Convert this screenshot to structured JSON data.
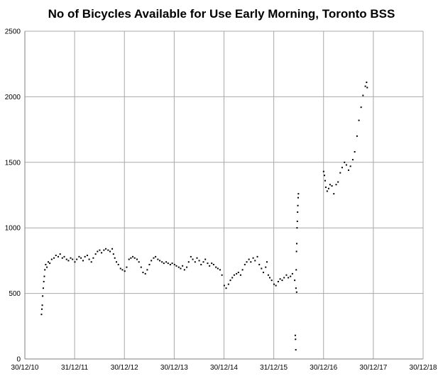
{
  "chart_data": {
    "type": "scatter",
    "title": "No of Bicycles Available for Use Early Morning, Toronto BSS",
    "xlabel": "",
    "ylabel": "",
    "x_ticks": [
      "30/12/10",
      "31/12/11",
      "30/12/12",
      "30/12/13",
      "30/12/14",
      "31/12/15",
      "30/12/16",
      "30/12/17",
      "30/12/18"
    ],
    "xlim": [
      "2010-12-30",
      "2018-12-30"
    ],
    "ylim": [
      0,
      2500
    ],
    "y_ticks": [
      0,
      500,
      1000,
      1500,
      2000,
      2500
    ],
    "grid": true,
    "marker_color": "#000000",
    "points": [
      {
        "x": "2011-05-01",
        "y": 340
      },
      {
        "x": "2011-05-04",
        "y": 380
      },
      {
        "x": "2011-05-07",
        "y": 410
      },
      {
        "x": "2011-05-10",
        "y": 480
      },
      {
        "x": "2011-05-14",
        "y": 540
      },
      {
        "x": "2011-05-18",
        "y": 590
      },
      {
        "x": "2011-05-22",
        "y": 630
      },
      {
        "x": "2011-05-26",
        "y": 680
      },
      {
        "x": "2011-06-01",
        "y": 720
      },
      {
        "x": "2011-06-10",
        "y": 700
      },
      {
        "x": "2011-06-20",
        "y": 740
      },
      {
        "x": "2011-07-01",
        "y": 730
      },
      {
        "x": "2011-07-15",
        "y": 760
      },
      {
        "x": "2011-08-01",
        "y": 770
      },
      {
        "x": "2011-08-15",
        "y": 790
      },
      {
        "x": "2011-09-01",
        "y": 780
      },
      {
        "x": "2011-09-15",
        "y": 800
      },
      {
        "x": "2011-10-01",
        "y": 770
      },
      {
        "x": "2011-10-15",
        "y": 780
      },
      {
        "x": "2011-11-01",
        "y": 760
      },
      {
        "x": "2011-11-15",
        "y": 750
      },
      {
        "x": "2011-12-01",
        "y": 770
      },
      {
        "x": "2011-12-15",
        "y": 760
      },
      {
        "x": "2012-01-01",
        "y": 740
      },
      {
        "x": "2012-01-15",
        "y": 760
      },
      {
        "x": "2012-02-01",
        "y": 780
      },
      {
        "x": "2012-02-15",
        "y": 770
      },
      {
        "x": "2012-03-01",
        "y": 750
      },
      {
        "x": "2012-03-15",
        "y": 780
      },
      {
        "x": "2012-04-01",
        "y": 790
      },
      {
        "x": "2012-04-15",
        "y": 760
      },
      {
        "x": "2012-05-01",
        "y": 740
      },
      {
        "x": "2012-05-15",
        "y": 770
      },
      {
        "x": "2012-06-01",
        "y": 800
      },
      {
        "x": "2012-06-15",
        "y": 820
      },
      {
        "x": "2012-07-01",
        "y": 830
      },
      {
        "x": "2012-07-15",
        "y": 810
      },
      {
        "x": "2012-08-01",
        "y": 830
      },
      {
        "x": "2012-08-15",
        "y": 840
      },
      {
        "x": "2012-09-01",
        "y": 830
      },
      {
        "x": "2012-09-15",
        "y": 820
      },
      {
        "x": "2012-10-01",
        "y": 840
      },
      {
        "x": "2012-10-10",
        "y": 800
      },
      {
        "x": "2012-10-20",
        "y": 770
      },
      {
        "x": "2012-11-01",
        "y": 740
      },
      {
        "x": "2012-11-15",
        "y": 720
      },
      {
        "x": "2012-12-01",
        "y": 690
      },
      {
        "x": "2012-12-15",
        "y": 680
      },
      {
        "x": "2013-01-01",
        "y": 670
      },
      {
        "x": "2013-01-15",
        "y": 700
      },
      {
        "x": "2013-02-01",
        "y": 760
      },
      {
        "x": "2013-02-15",
        "y": 770
      },
      {
        "x": "2013-03-01",
        "y": 780
      },
      {
        "x": "2013-03-15",
        "y": 770
      },
      {
        "x": "2013-04-01",
        "y": 760
      },
      {
        "x": "2013-04-15",
        "y": 740
      },
      {
        "x": "2013-05-01",
        "y": 700
      },
      {
        "x": "2013-05-15",
        "y": 660
      },
      {
        "x": "2013-06-01",
        "y": 650
      },
      {
        "x": "2013-06-15",
        "y": 680
      },
      {
        "x": "2013-07-01",
        "y": 720
      },
      {
        "x": "2013-07-15",
        "y": 750
      },
      {
        "x": "2013-08-01",
        "y": 770
      },
      {
        "x": "2013-08-15",
        "y": 780
      },
      {
        "x": "2013-09-01",
        "y": 760
      },
      {
        "x": "2013-09-15",
        "y": 750
      },
      {
        "x": "2013-10-01",
        "y": 740
      },
      {
        "x": "2013-10-15",
        "y": 730
      },
      {
        "x": "2013-11-01",
        "y": 740
      },
      {
        "x": "2013-11-15",
        "y": 730
      },
      {
        "x": "2013-12-01",
        "y": 720
      },
      {
        "x": "2013-12-15",
        "y": 730
      },
      {
        "x": "2014-01-01",
        "y": 720
      },
      {
        "x": "2014-01-15",
        "y": 710
      },
      {
        "x": "2014-02-01",
        "y": 700
      },
      {
        "x": "2014-02-15",
        "y": 690
      },
      {
        "x": "2014-03-01",
        "y": 710
      },
      {
        "x": "2014-03-15",
        "y": 680
      },
      {
        "x": "2014-04-01",
        "y": 700
      },
      {
        "x": "2014-04-15",
        "y": 740
      },
      {
        "x": "2014-05-01",
        "y": 780
      },
      {
        "x": "2014-05-15",
        "y": 760
      },
      {
        "x": "2014-06-01",
        "y": 740
      },
      {
        "x": "2014-06-15",
        "y": 770
      },
      {
        "x": "2014-07-01",
        "y": 750
      },
      {
        "x": "2014-07-15",
        "y": 720
      },
      {
        "x": "2014-08-01",
        "y": 740
      },
      {
        "x": "2014-08-15",
        "y": 760
      },
      {
        "x": "2014-09-01",
        "y": 730
      },
      {
        "x": "2014-09-15",
        "y": 710
      },
      {
        "x": "2014-10-01",
        "y": 730
      },
      {
        "x": "2014-10-15",
        "y": 720
      },
      {
        "x": "2014-11-01",
        "y": 700
      },
      {
        "x": "2014-11-15",
        "y": 690
      },
      {
        "x": "2014-12-01",
        "y": 680
      },
      {
        "x": "2014-12-15",
        "y": 640
      },
      {
        "x": "2015-01-01",
        "y": 560
      },
      {
        "x": "2015-01-15",
        "y": 540
      },
      {
        "x": "2015-02-01",
        "y": 570
      },
      {
        "x": "2015-02-15",
        "y": 600
      },
      {
        "x": "2015-03-01",
        "y": 620
      },
      {
        "x": "2015-03-15",
        "y": 640
      },
      {
        "x": "2015-04-01",
        "y": 650
      },
      {
        "x": "2015-04-15",
        "y": 660
      },
      {
        "x": "2015-05-01",
        "y": 640
      },
      {
        "x": "2015-05-15",
        "y": 680
      },
      {
        "x": "2015-06-01",
        "y": 720
      },
      {
        "x": "2015-06-15",
        "y": 740
      },
      {
        "x": "2015-07-01",
        "y": 760
      },
      {
        "x": "2015-07-15",
        "y": 740
      },
      {
        "x": "2015-08-01",
        "y": 770
      },
      {
        "x": "2015-08-15",
        "y": 750
      },
      {
        "x": "2015-09-01",
        "y": 780
      },
      {
        "x": "2015-09-15",
        "y": 720
      },
      {
        "x": "2015-10-01",
        "y": 690
      },
      {
        "x": "2015-10-15",
        "y": 660
      },
      {
        "x": "2015-11-01",
        "y": 700
      },
      {
        "x": "2015-11-10",
        "y": 740
      },
      {
        "x": "2015-11-20",
        "y": 640
      },
      {
        "x": "2015-12-01",
        "y": 620
      },
      {
        "x": "2015-12-15",
        "y": 600
      },
      {
        "x": "2016-01-01",
        "y": 570
      },
      {
        "x": "2016-01-15",
        "y": 560
      },
      {
        "x": "2016-02-01",
        "y": 590
      },
      {
        "x": "2016-02-15",
        "y": 610
      },
      {
        "x": "2016-03-01",
        "y": 600
      },
      {
        "x": "2016-03-15",
        "y": 620
      },
      {
        "x": "2016-04-01",
        "y": 640
      },
      {
        "x": "2016-04-15",
        "y": 620
      },
      {
        "x": "2016-05-01",
        "y": 630
      },
      {
        "x": "2016-05-15",
        "y": 650
      },
      {
        "x": "2016-06-01",
        "y": 600
      },
      {
        "x": "2016-06-10",
        "y": 540
      },
      {
        "x": "2016-06-15",
        "y": 510
      },
      {
        "x": "2016-06-05",
        "y": 180
      },
      {
        "x": "2016-06-07",
        "y": 150
      },
      {
        "x": "2016-06-09",
        "y": 70
      },
      {
        "x": "2016-06-12",
        "y": 680
      },
      {
        "x": "2016-06-14",
        "y": 820
      },
      {
        "x": "2016-06-16",
        "y": 880
      },
      {
        "x": "2016-06-18",
        "y": 1000
      },
      {
        "x": "2016-06-20",
        "y": 1050
      },
      {
        "x": "2016-06-22",
        "y": 1120
      },
      {
        "x": "2016-06-24",
        "y": 1170
      },
      {
        "x": "2016-06-26",
        "y": 1230
      },
      {
        "x": "2016-06-28",
        "y": 1260
      },
      {
        "x": "2016-12-30",
        "y": 1430
      },
      {
        "x": "2017-01-05",
        "y": 1400
      },
      {
        "x": "2017-01-10",
        "y": 1360
      },
      {
        "x": "2017-01-15",
        "y": 1310
      },
      {
        "x": "2017-01-25",
        "y": 1280
      },
      {
        "x": "2017-02-05",
        "y": 1300
      },
      {
        "x": "2017-02-15",
        "y": 1330
      },
      {
        "x": "2017-03-01",
        "y": 1320
      },
      {
        "x": "2017-03-15",
        "y": 1260
      },
      {
        "x": "2017-04-01",
        "y": 1330
      },
      {
        "x": "2017-04-15",
        "y": 1350
      },
      {
        "x": "2017-05-01",
        "y": 1420
      },
      {
        "x": "2017-05-15",
        "y": 1460
      },
      {
        "x": "2017-06-01",
        "y": 1500
      },
      {
        "x": "2017-06-15",
        "y": 1480
      },
      {
        "x": "2017-07-01",
        "y": 1440
      },
      {
        "x": "2017-07-15",
        "y": 1470
      },
      {
        "x": "2017-08-01",
        "y": 1520
      },
      {
        "x": "2017-08-15",
        "y": 1580
      },
      {
        "x": "2017-09-01",
        "y": 1700
      },
      {
        "x": "2017-09-15",
        "y": 1820
      },
      {
        "x": "2017-10-01",
        "y": 1920
      },
      {
        "x": "2017-10-15",
        "y": 2010
      },
      {
        "x": "2017-11-01",
        "y": 2080
      },
      {
        "x": "2017-11-10",
        "y": 2110
      },
      {
        "x": "2017-11-15",
        "y": 2070
      }
    ]
  }
}
